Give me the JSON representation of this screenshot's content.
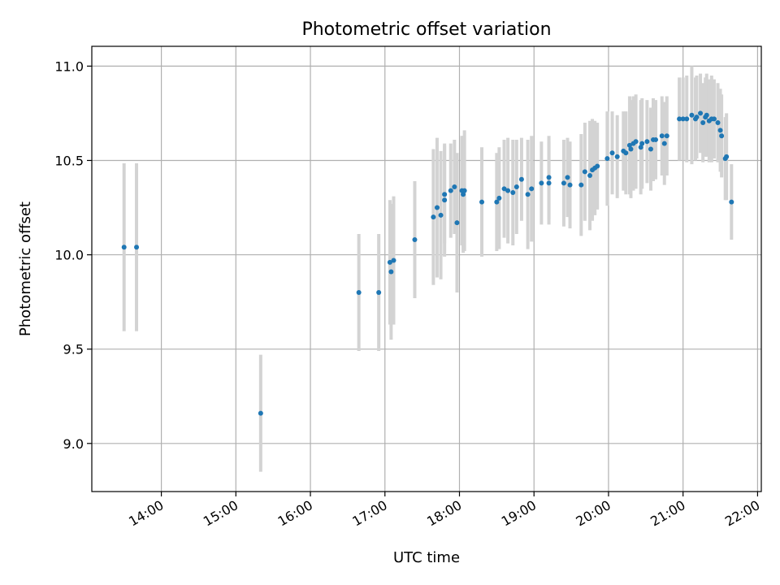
{
  "chart_data": {
    "type": "scatter",
    "title": "Photometric offset variation",
    "xlabel": "UTC time",
    "ylabel": "Photometric offset",
    "x_tick_labels": [
      "14:00",
      "15:00",
      "16:00",
      "17:00",
      "18:00",
      "19:00",
      "20:00",
      "21:00",
      "22:00"
    ],
    "x_ticks_hours": [
      14,
      15,
      16,
      17,
      18,
      19,
      20,
      21,
      22
    ],
    "y_tick_labels": [
      "9.0",
      "9.5",
      "10.0",
      "10.5",
      "11.0"
    ],
    "y_ticks": [
      9.0,
      9.5,
      10.0,
      10.5,
      11.0
    ],
    "xlim_hours": [
      13.067,
      22.05
    ],
    "ylim": [
      8.745,
      11.105
    ],
    "grid": true,
    "colors": {
      "point": "#1f77b4",
      "errorbar": "#d3d3d3",
      "grid": "#b0b0b0"
    },
    "series": [
      {
        "points": [
          [
            13.5,
            10.04,
            0.445
          ],
          [
            13.667,
            10.04,
            0.445
          ],
          [
            15.333,
            9.16,
            0.31
          ],
          [
            16.65,
            9.8,
            0.31
          ],
          [
            16.917,
            9.8,
            0.31
          ],
          [
            17.067,
            9.96,
            0.33
          ],
          [
            17.083,
            9.91,
            0.36
          ],
          [
            17.117,
            9.97,
            0.34
          ],
          [
            17.4,
            10.08,
            0.31
          ],
          [
            17.65,
            10.2,
            0.36
          ],
          [
            17.7,
            10.25,
            0.37
          ],
          [
            17.75,
            10.21,
            0.34
          ],
          [
            17.8,
            10.29,
            0.3
          ],
          [
            17.8,
            10.32,
            0.26
          ],
          [
            17.883,
            10.34,
            0.25
          ],
          [
            17.933,
            10.36,
            0.25
          ],
          [
            17.967,
            10.17,
            0.37
          ],
          [
            18.033,
            10.34,
            0.29
          ],
          [
            18.05,
            10.32,
            0.31
          ],
          [
            18.067,
            10.34,
            0.32
          ],
          [
            18.3,
            10.28,
            0.29
          ],
          [
            18.5,
            10.28,
            0.26
          ],
          [
            18.533,
            10.3,
            0.27
          ],
          [
            18.6,
            10.35,
            0.26
          ],
          [
            18.65,
            10.34,
            0.28
          ],
          [
            18.717,
            10.33,
            0.28
          ],
          [
            18.767,
            10.36,
            0.25
          ],
          [
            18.833,
            10.4,
            0.22
          ],
          [
            18.917,
            10.32,
            0.29
          ],
          [
            18.967,
            10.35,
            0.28
          ],
          [
            19.1,
            10.38,
            0.22
          ],
          [
            19.2,
            10.41,
            0.22
          ],
          [
            19.2,
            10.38,
            0.22
          ],
          [
            19.4,
            10.38,
            0.23
          ],
          [
            19.45,
            10.41,
            0.21
          ],
          [
            19.483,
            10.37,
            0.23
          ],
          [
            19.633,
            10.37,
            0.27
          ],
          [
            19.683,
            10.44,
            0.26
          ],
          [
            19.75,
            10.42,
            0.29
          ],
          [
            19.783,
            10.45,
            0.27
          ],
          [
            19.817,
            10.46,
            0.25
          ],
          [
            19.85,
            10.47,
            0.23
          ],
          [
            19.983,
            10.51,
            0.25
          ],
          [
            20.05,
            10.54,
            0.22
          ],
          [
            20.117,
            10.52,
            0.22
          ],
          [
            20.2,
            10.55,
            0.21
          ],
          [
            20.233,
            10.54,
            0.22
          ],
          [
            20.283,
            10.58,
            0.26
          ],
          [
            20.3,
            10.56,
            0.26
          ],
          [
            20.333,
            10.59,
            0.25
          ],
          [
            20.367,
            10.6,
            0.25
          ],
          [
            20.433,
            10.57,
            0.25
          ],
          [
            20.45,
            10.59,
            0.24
          ],
          [
            20.517,
            10.6,
            0.22
          ],
          [
            20.567,
            10.56,
            0.22
          ],
          [
            20.6,
            10.61,
            0.22
          ],
          [
            20.633,
            10.61,
            0.21
          ],
          [
            20.717,
            10.63,
            0.21
          ],
          [
            20.75,
            10.59,
            0.22
          ],
          [
            20.783,
            10.63,
            0.21
          ],
          [
            20.95,
            10.72,
            0.22
          ],
          [
            21.0,
            10.72,
            0.22
          ],
          [
            21.05,
            10.72,
            0.23
          ],
          [
            21.117,
            10.74,
            0.26
          ],
          [
            21.167,
            10.72,
            0.22
          ],
          [
            21.183,
            10.73,
            0.22
          ],
          [
            21.233,
            10.75,
            0.21
          ],
          [
            21.267,
            10.7,
            0.21
          ],
          [
            21.3,
            10.73,
            0.21
          ],
          [
            21.317,
            10.74,
            0.22
          ],
          [
            21.35,
            10.71,
            0.22
          ],
          [
            21.383,
            10.72,
            0.23
          ],
          [
            21.417,
            10.72,
            0.21
          ],
          [
            21.467,
            10.7,
            0.21
          ],
          [
            21.5,
            10.66,
            0.22
          ],
          [
            21.517,
            10.63,
            0.22
          ],
          [
            21.567,
            10.51,
            0.22
          ],
          [
            21.583,
            10.52,
            0.23
          ],
          [
            21.65,
            10.28,
            0.2
          ]
        ]
      }
    ]
  }
}
